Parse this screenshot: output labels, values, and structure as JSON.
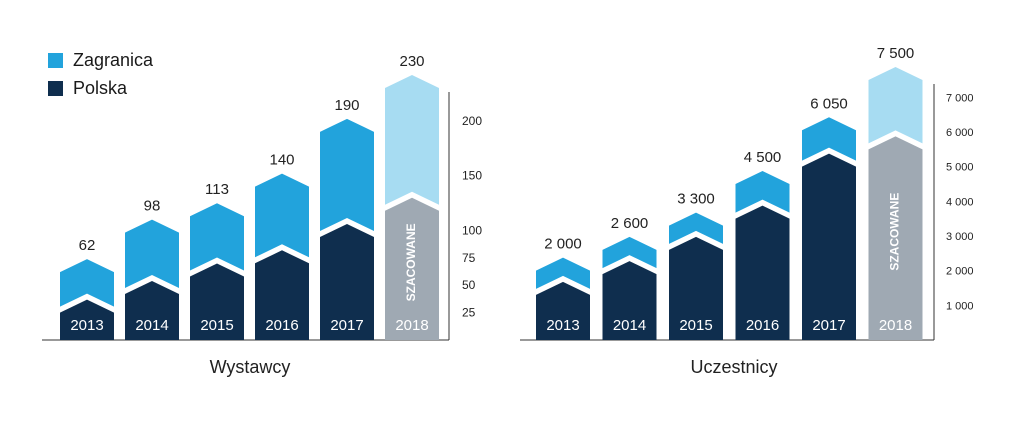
{
  "legend": [
    {
      "label": "Zagranica",
      "color": "#22a3dc"
    },
    {
      "label": "Polska",
      "color": "#0f2e4e"
    }
  ],
  "colors": {
    "zagranica": "#22a3dc",
    "polska": "#0f2e4e",
    "est_top": "#a7dcf2",
    "est_bottom": "#9fa9b3",
    "axis": "#333333",
    "text": "#222222",
    "year_label": "#ffffff"
  },
  "chart_data": [
    {
      "type": "bar",
      "stacked": true,
      "title": "Wystawcy",
      "categories": [
        "2013",
        "2014",
        "2015",
        "2016",
        "2017",
        "2018"
      ],
      "totals": [
        62,
        98,
        113,
        140,
        190,
        230
      ],
      "total_labels": [
        "62",
        "98",
        "113",
        "140",
        "190",
        "230"
      ],
      "series": [
        {
          "name": "Polska",
          "values": [
            25,
            42,
            58,
            70,
            94,
            118
          ]
        },
        {
          "name": "Zagranica",
          "values": [
            37,
            56,
            55,
            70,
            96,
            112
          ]
        }
      ],
      "estimated_category": "2018",
      "estimated_label": "SZACOWANE",
      "ylim": [
        0,
        230
      ],
      "y_ticks": [
        25,
        50,
        75,
        100,
        150,
        200
      ],
      "y_tick_labels": [
        "25",
        "50",
        "75",
        "100",
        "150",
        "200"
      ],
      "y_axis_position": "right"
    },
    {
      "type": "bar",
      "stacked": true,
      "title": "Uczestnicy",
      "categories": [
        "2013",
        "2014",
        "2015",
        "2016",
        "2017",
        "2018"
      ],
      "totals": [
        2000,
        2600,
        3300,
        4500,
        6050,
        7500
      ],
      "total_labels": [
        "2 000",
        "2 600",
        "3 300",
        "4 500",
        "6 050",
        "7 500"
      ],
      "series": [
        {
          "name": "Polska",
          "values": [
            1300,
            1900,
            2600,
            3500,
            5000,
            5500
          ]
        },
        {
          "name": "Zagranica",
          "values": [
            700,
            700,
            700,
            1000,
            1050,
            2000
          ]
        }
      ],
      "estimated_category": "2018",
      "estimated_label": "SZACOWANE",
      "ylim": [
        0,
        7500
      ],
      "y_ticks": [
        1000,
        2000,
        3000,
        4000,
        5000,
        6000,
        7000
      ],
      "y_tick_labels": [
        "1 000",
        "2 000",
        "3 000",
        "4 000",
        "5 000",
        "6 000",
        "7 000"
      ],
      "y_axis_position": "right"
    }
  ]
}
